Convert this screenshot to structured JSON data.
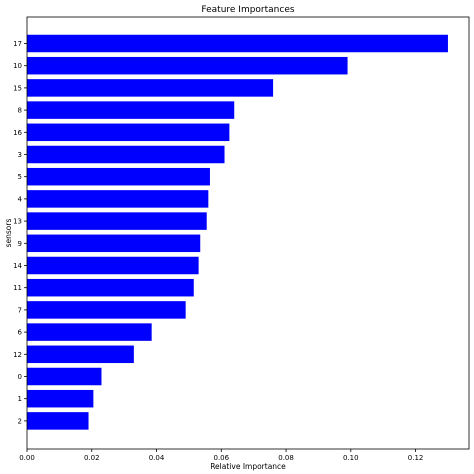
{
  "chart_data": {
    "type": "bar",
    "orientation": "horizontal",
    "title": "Feature Importances",
    "xlabel": "Relative Importance",
    "ylabel": "sensors",
    "categories": [
      "17",
      "10",
      "15",
      "8",
      "16",
      "3",
      "5",
      "4",
      "13",
      "9",
      "14",
      "11",
      "7",
      "6",
      "12",
      "0",
      "1",
      "2"
    ],
    "values": [
      0.13,
      0.099,
      0.076,
      0.064,
      0.0625,
      0.061,
      0.0565,
      0.056,
      0.0555,
      0.0535,
      0.053,
      0.0515,
      0.049,
      0.0385,
      0.033,
      0.023,
      0.0205,
      0.019
    ],
    "xlim": [
      0,
      0.1365
    ],
    "xticks": [
      "0.00",
      "0.02",
      "0.04",
      "0.06",
      "0.08",
      "0.10",
      "0.12"
    ],
    "xtick_values": [
      0,
      0.02,
      0.04,
      0.06,
      0.08,
      0.1,
      0.12
    ],
    "bar_color": "#0000ff",
    "grid": false,
    "legend": "none"
  }
}
